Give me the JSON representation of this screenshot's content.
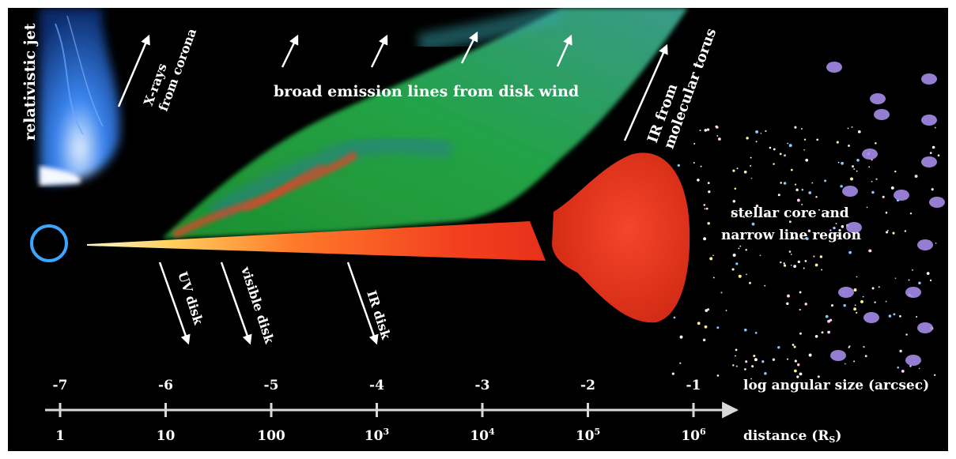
{
  "labels": {
    "relativistic_jet": "relativistic jet",
    "xrays_line1": "X-rays",
    "xrays_line2": "from corona",
    "broad_lines": "broad emission lines from disk wind",
    "ir_torus_line1": "IR from",
    "ir_torus_line2": "molecular  torus",
    "stellar_line1": "stellar core and",
    "stellar_line2": "narrow line region",
    "uv_disk": "UV disk",
    "visible_disk": "visible disk",
    "ir_disk": "IR disk"
  },
  "axis": {
    "top_title": "log angular size (arcsec)",
    "bottom_title": "distance (Rs)",
    "bottom_title_main": "distance (R",
    "bottom_title_sub": "S",
    "bottom_title_close": ")",
    "top_ticks": [
      "-7",
      "-6",
      "-5",
      "-4",
      "-3",
      "-2",
      "-1"
    ],
    "bottom_ticks": [
      {
        "base": "1",
        "sup": ""
      },
      {
        "base": "10",
        "sup": ""
      },
      {
        "base": "100",
        "sup": ""
      },
      {
        "base": "10",
        "sup": "3"
      },
      {
        "base": "10",
        "sup": "4"
      },
      {
        "base": "10",
        "sup": "5"
      },
      {
        "base": "10",
        "sup": "6"
      }
    ]
  },
  "colors": {
    "background": "#000000",
    "foreground": "#ffffff",
    "axis_line": "#d8d8d8",
    "torus": "#f03a22",
    "wind_green": "#1f9a3c",
    "wind_teal": "#2a8a7a",
    "jet_blue": "#2a6fe0",
    "disk_hot": "#fff6c8",
    "star_purple": "#a58be8"
  }
}
